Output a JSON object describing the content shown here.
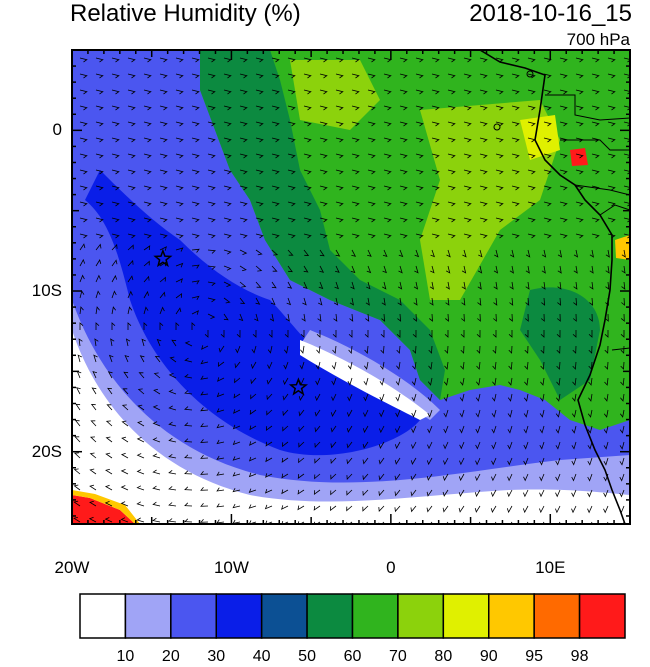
{
  "title": "Relative Humidity (%)",
  "datetime": "2018-10-16_15",
  "level": "700 hPa",
  "map": {
    "lon_min": -20,
    "lon_max": 15,
    "lat_min": -24.5,
    "lat_max": 5,
    "lon_ticks": [
      {
        "value": -20,
        "label": "20W"
      },
      {
        "value": -10,
        "label": "10W"
      },
      {
        "value": 0,
        "label": "0"
      },
      {
        "value": 10,
        "label": "10E"
      }
    ],
    "lat_ticks": [
      {
        "value": 0,
        "label": "0"
      },
      {
        "value": -10,
        "label": "10S"
      },
      {
        "value": -20,
        "label": "20S"
      }
    ],
    "stars": [
      {
        "lon": -14.3,
        "lat": -8.0
      },
      {
        "lon": -5.8,
        "lat": -16.0
      }
    ]
  },
  "colorbar": {
    "colors": [
      "#ffffff",
      "#a0a4f6",
      "#4b56f0",
      "#0a1ee8",
      "#0c5094",
      "#0c8a40",
      "#30b41e",
      "#8cd20c",
      "#e0f000",
      "#ffc800",
      "#ff6a00",
      "#ff1a1a"
    ],
    "labels": [
      "10",
      "20",
      "30",
      "40",
      "50",
      "60",
      "70",
      "80",
      "90",
      "95",
      "98"
    ]
  }
}
